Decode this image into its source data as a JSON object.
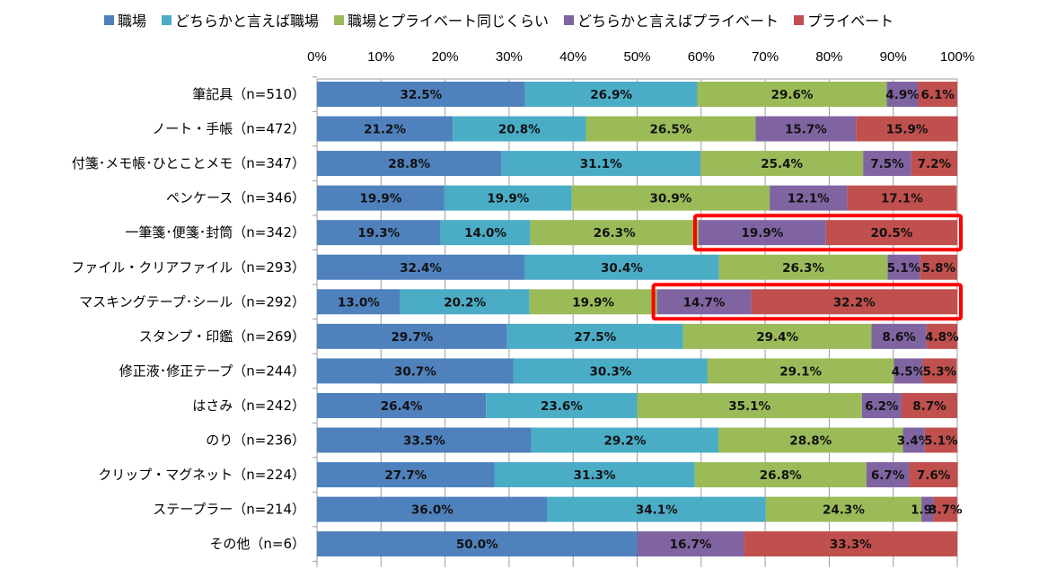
{
  "chart_data": {
    "type": "bar",
    "orientation": "horizontal",
    "stacked": "percent",
    "title": "",
    "xlabel": "",
    "ylabel": "",
    "xlim": [
      0,
      100
    ],
    "x_ticks": [
      "0%",
      "10%",
      "20%",
      "30%",
      "40%",
      "50%",
      "60%",
      "70%",
      "80%",
      "90%",
      "100%"
    ],
    "grid": true,
    "legend_position": "top",
    "categories": [
      "筆記具（n=510）",
      "ノート・手帳（n=472）",
      "付箋･メモ帳･ひとことメモ（n=347）",
      "ペンケース（n=346）",
      "一筆箋･便箋･封筒（n=342）",
      "ファイル・クリアファイル（n=293）",
      "マスキングテープ･シール（n=292）",
      "スタンプ・印鑑（n=269）",
      "修正液･修正テープ（n=244）",
      "はさみ（n=242）",
      "のり（n=236）",
      "クリップ・マグネット（n=224）",
      "ステープラー（n=214）",
      "その他（n=6）"
    ],
    "series": [
      {
        "name": "職場",
        "color": "#4f81bd",
        "values": [
          32.5,
          21.2,
          28.8,
          19.9,
          19.3,
          32.4,
          13.0,
          29.7,
          30.7,
          26.4,
          33.5,
          27.7,
          36.0,
          50.0
        ]
      },
      {
        "name": "どちらかと言えば職場",
        "color": "#4bacc6",
        "values": [
          26.9,
          20.8,
          31.1,
          19.9,
          14.0,
          30.4,
          20.2,
          27.5,
          30.3,
          23.6,
          29.2,
          31.3,
          34.1,
          0.0
        ]
      },
      {
        "name": "職場とプライベート同じくらい",
        "color": "#9bbb59",
        "values": [
          29.6,
          26.5,
          25.4,
          30.9,
          26.3,
          26.3,
          19.9,
          29.4,
          29.1,
          35.1,
          28.8,
          26.8,
          24.3,
          0.0
        ]
      },
      {
        "name": "どちらかと言えばプライベート",
        "color": "#8064a2",
        "values": [
          4.9,
          15.7,
          7.5,
          12.1,
          19.9,
          5.1,
          14.7,
          8.6,
          4.5,
          6.2,
          3.4,
          6.7,
          1.9,
          16.7
        ]
      },
      {
        "name": "プライベート",
        "color": "#c0504d",
        "values": [
          6.1,
          15.9,
          7.2,
          17.1,
          20.5,
          5.8,
          32.2,
          4.8,
          5.3,
          8.7,
          5.1,
          7.6,
          3.7,
          33.3
        ]
      }
    ],
    "value_labels": [
      [
        "32.5%",
        "26.9%",
        "29.6%",
        "4.9%",
        "6.1%"
      ],
      [
        "21.2%",
        "20.8%",
        "26.5%",
        "15.7%",
        "15.9%"
      ],
      [
        "28.8%",
        "31.1%",
        "25.4%",
        "7.5%",
        "7.2%"
      ],
      [
        "19.9%",
        "19.9%",
        "30.9%",
        "12.1%",
        "17.1%"
      ],
      [
        "19.3%",
        "14.0%",
        "26.3%",
        "19.9%",
        "20.5%"
      ],
      [
        "32.4%",
        "30.4%",
        "26.3%",
        "5.1%",
        "5.8%"
      ],
      [
        "13.0%",
        "20.2%",
        "19.9%",
        "14.7%",
        "32.2%"
      ],
      [
        "29.7%",
        "27.5%",
        "29.4%",
        "8.6%",
        "4.8%"
      ],
      [
        "30.7%",
        "30.3%",
        "29.1%",
        "4.5%",
        "5.3%"
      ],
      [
        "26.4%",
        "23.6%",
        "35.1%",
        "6.2%",
        "8.7%"
      ],
      [
        "33.5%",
        "29.2%",
        "28.8%",
        "3.4%",
        "5.1%"
      ],
      [
        "27.7%",
        "31.3%",
        "26.8%",
        "6.7%",
        "7.6%"
      ],
      [
        "36.0%",
        "34.1%",
        "24.3%",
        "1.9%",
        "3.7%"
      ],
      [
        "50.0%",
        "",
        "",
        "16.7%",
        "33.3%"
      ]
    ],
    "annotations": [
      {
        "type": "highlight-box",
        "category_index": 4,
        "series": [
          "どちらかと言えばプライベート",
          "プライベート"
        ],
        "color": "#ff0000"
      },
      {
        "type": "highlight-box",
        "category_index": 6,
        "series": [
          "どちらかと言えばプライベート",
          "プライベート"
        ],
        "color": "#ff0000"
      }
    ]
  }
}
